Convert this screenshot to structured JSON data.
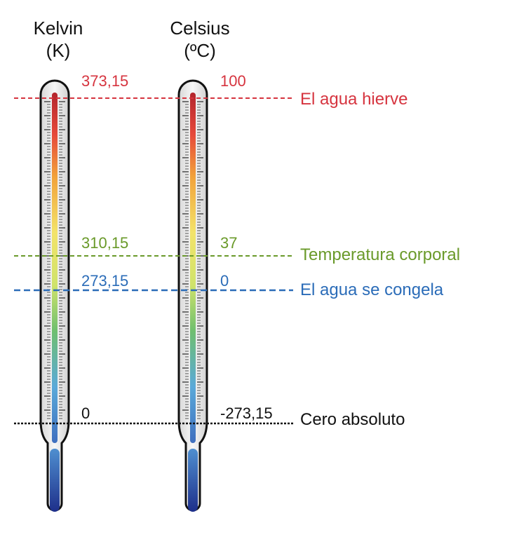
{
  "columns": [
    {
      "name": "Kelvin",
      "unit": "(K)"
    },
    {
      "name": "Celsius",
      "unit": "(ºC)"
    }
  ],
  "reference_lines": [
    {
      "id": "boiling",
      "kelvin": "373,15",
      "celsius": "100",
      "label": "El agua hierve",
      "color": "#d6343f"
    },
    {
      "id": "body",
      "kelvin": "310,15",
      "celsius": "37",
      "label": "Temperatura corporal",
      "color": "#6a9a2a"
    },
    {
      "id": "freezing",
      "kelvin": "273,15",
      "celsius": "0",
      "label": "El agua se congela",
      "color": "#2b6cb8"
    },
    {
      "id": "absolute",
      "kelvin": "0",
      "celsius": "-273,15",
      "label": "Cero absoluto",
      "color": "#111111"
    }
  ]
}
